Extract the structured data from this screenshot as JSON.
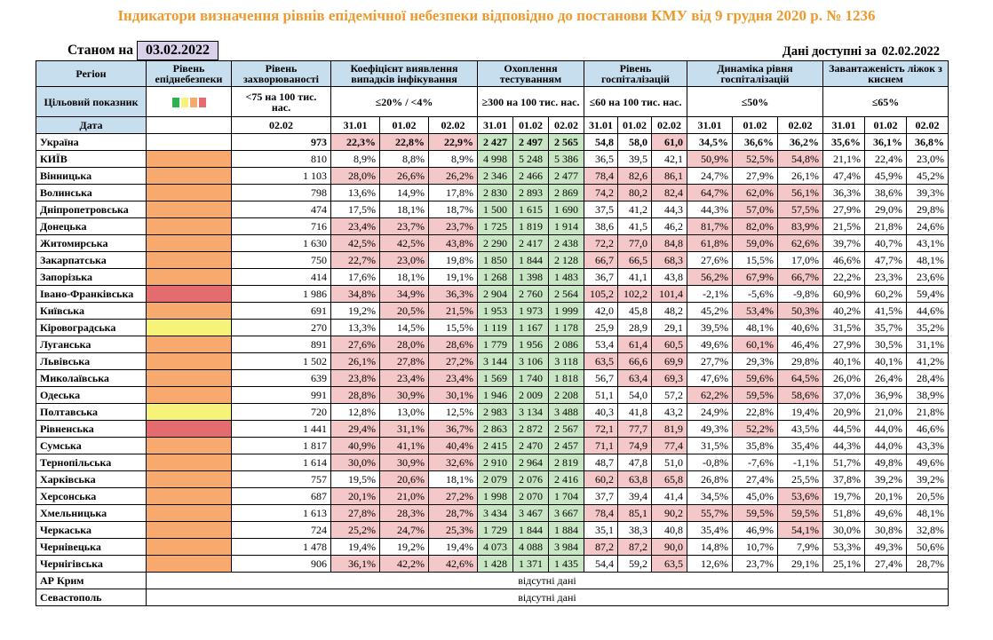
{
  "title": "Індикатори визначення рівнів епідемічної небезпеки відповідно до постанови КМУ від 9 грудня 2020 р. № 1236",
  "as_of_label": "Станом на",
  "as_of_date": "03.02.2022",
  "available_label": "Дані доступні за",
  "available_date": "02.02.2022",
  "colors": {
    "orange": "#F7A96E",
    "red": "#E46B6E",
    "yellow": "#F7F27A",
    "pink": "#F4C7C9",
    "green": "#C9E6C4",
    "header": "#C7DEEF"
  },
  "headers": {
    "region": "Регіон",
    "level": "Рівень епіднебезпеки",
    "incidence": "Рівень захворюваності",
    "detection": "Коефіцієнт виявлення випадків інфікування",
    "testing": "Охоплення тестуванням",
    "hosp": "Рівень госпіталізацій",
    "hosp_dyn": "Динаміка рівня госпіталізацій",
    "beds": "Завантаженість ліжок з киснем",
    "target": "Цільовий показник",
    "date": "Дата",
    "incidence_target": "<75 на 100 тис. нас.",
    "detection_target": "≤20% / <4%",
    "testing_target": "≥300 на 100 тис. нас.",
    "hosp_target": "≤60 на 100 тис. нас.",
    "hosp_dyn_target": "≤50%",
    "beds_target": "≤65%",
    "incidence_date": "02.02",
    "d1": "31.01",
    "d2": "01.02",
    "d3": "02.02",
    "target_dots": [
      "#2EB24F",
      "#F7F27A",
      "#F7A96E",
      "#E46B6E"
    ]
  },
  "rows": [
    {
      "name": "Україна",
      "level": "",
      "inc": "973",
      "det": [
        "22,3%",
        "22,8%",
        "22,9%"
      ],
      "detp": [
        1,
        1,
        1
      ],
      "test": [
        "2 427",
        "2 497",
        "2 565"
      ],
      "hosp": [
        "54,8",
        "58,0",
        "61,0"
      ],
      "hospp": [
        0,
        0,
        1
      ],
      "dyn": [
        "34,5%",
        "36,6%",
        "36,2%"
      ],
      "dynp": [
        0,
        0,
        0
      ],
      "beds": [
        "35,6%",
        "36,1%",
        "36,8%"
      ]
    },
    {
      "name": "КИЇВ",
      "level": "orange",
      "inc": "810",
      "det": [
        "8,9%",
        "8,8%",
        "8,9%"
      ],
      "detp": [
        0,
        0,
        0
      ],
      "test": [
        "4 998",
        "5 248",
        "5 386"
      ],
      "hosp": [
        "36,5",
        "39,5",
        "42,1"
      ],
      "hospp": [
        0,
        0,
        0
      ],
      "dyn": [
        "50,9%",
        "52,5%",
        "54,8%"
      ],
      "dynp": [
        1,
        1,
        1
      ],
      "beds": [
        "21,1%",
        "22,4%",
        "23,0%"
      ]
    },
    {
      "name": "Вінницька",
      "level": "orange",
      "inc": "1 103",
      "det": [
        "28,0%",
        "26,6%",
        "26,2%"
      ],
      "detp": [
        1,
        1,
        1
      ],
      "test": [
        "2 346",
        "2 466",
        "2 477"
      ],
      "hosp": [
        "78,4",
        "82,6",
        "86,1"
      ],
      "hospp": [
        1,
        1,
        1
      ],
      "dyn": [
        "24,7%",
        "27,9%",
        "26,1%"
      ],
      "dynp": [
        0,
        0,
        0
      ],
      "beds": [
        "47,4%",
        "45,9%",
        "45,2%"
      ]
    },
    {
      "name": "Волинська",
      "level": "orange",
      "inc": "798",
      "det": [
        "13,6%",
        "14,9%",
        "17,8%"
      ],
      "detp": [
        0,
        0,
        0
      ],
      "test": [
        "2 830",
        "2 893",
        "2 869"
      ],
      "hosp": [
        "74,2",
        "80,2",
        "82,4"
      ],
      "hospp": [
        1,
        1,
        1
      ],
      "dyn": [
        "64,7%",
        "62,0%",
        "56,1%"
      ],
      "dynp": [
        1,
        1,
        1
      ],
      "beds": [
        "36,3%",
        "38,6%",
        "39,3%"
      ]
    },
    {
      "name": "Дніпропетровська",
      "level": "orange",
      "inc": "474",
      "det": [
        "17,5%",
        "18,1%",
        "18,7%"
      ],
      "detp": [
        0,
        0,
        0
      ],
      "test": [
        "1 500",
        "1 615",
        "1 690"
      ],
      "hosp": [
        "37,5",
        "41,2",
        "44,3"
      ],
      "hospp": [
        0,
        0,
        0
      ],
      "dyn": [
        "44,3%",
        "57,0%",
        "57,5%"
      ],
      "dynp": [
        0,
        1,
        1
      ],
      "beds": [
        "27,9%",
        "29,0%",
        "29,8%"
      ]
    },
    {
      "name": "Донецька",
      "level": "orange",
      "inc": "716",
      "det": [
        "23,4%",
        "23,7%",
        "23,7%"
      ],
      "detp": [
        1,
        1,
        1
      ],
      "test": [
        "1 725",
        "1 819",
        "1 914"
      ],
      "hosp": [
        "38,6",
        "41,5",
        "46,2"
      ],
      "hospp": [
        0,
        0,
        0
      ],
      "dyn": [
        "81,7%",
        "82,0%",
        "83,9%"
      ],
      "dynp": [
        1,
        1,
        1
      ],
      "beds": [
        "21,5%",
        "21,8%",
        "24,6%"
      ]
    },
    {
      "name": "Житомирська",
      "level": "orange",
      "inc": "1 630",
      "det": [
        "42,5%",
        "42,5%",
        "43,8%"
      ],
      "detp": [
        1,
        1,
        1
      ],
      "test": [
        "2 290",
        "2 417",
        "2 438"
      ],
      "hosp": [
        "72,2",
        "77,0",
        "84,8"
      ],
      "hospp": [
        1,
        1,
        1
      ],
      "dyn": [
        "61,8%",
        "59,0%",
        "62,6%"
      ],
      "dynp": [
        1,
        1,
        1
      ],
      "beds": [
        "39,7%",
        "40,7%",
        "43,1%"
      ]
    },
    {
      "name": "Закарпатська",
      "level": "orange",
      "inc": "750",
      "det": [
        "22,7%",
        "23,0%",
        "19,8%"
      ],
      "detp": [
        1,
        1,
        0
      ],
      "test": [
        "1 850",
        "1 844",
        "2 128"
      ],
      "hosp": [
        "66,7",
        "66,5",
        "68,3"
      ],
      "hospp": [
        1,
        1,
        1
      ],
      "dyn": [
        "27,6%",
        "15,5%",
        "17,0%"
      ],
      "dynp": [
        0,
        0,
        0
      ],
      "beds": [
        "46,6%",
        "47,7%",
        "48,1%"
      ]
    },
    {
      "name": "Запорізька",
      "level": "orange",
      "inc": "414",
      "det": [
        "17,6%",
        "18,1%",
        "19,1%"
      ],
      "detp": [
        0,
        0,
        0
      ],
      "test": [
        "1 268",
        "1 398",
        "1 483"
      ],
      "hosp": [
        "36,7",
        "41,1",
        "43,8"
      ],
      "hospp": [
        0,
        0,
        0
      ],
      "dyn": [
        "56,2%",
        "67,9%",
        "66,7%"
      ],
      "dynp": [
        1,
        1,
        1
      ],
      "beds": [
        "22,2%",
        "23,3%",
        "23,6%"
      ]
    },
    {
      "name": "Івано-Франківська",
      "level": "red",
      "inc": "1 986",
      "det": [
        "34,8%",
        "34,9%",
        "36,3%"
      ],
      "detp": [
        1,
        1,
        1
      ],
      "test": [
        "2 904",
        "2 760",
        "2 564"
      ],
      "hosp": [
        "105,2",
        "102,2",
        "101,4"
      ],
      "hospp": [
        1,
        1,
        1
      ],
      "dyn": [
        "-2,1%",
        "-5,6%",
        "-9,8%"
      ],
      "dynp": [
        0,
        0,
        0
      ],
      "beds": [
        "60,9%",
        "60,2%",
        "59,4%"
      ]
    },
    {
      "name": "Київська",
      "level": "orange",
      "inc": "691",
      "det": [
        "19,2%",
        "20,5%",
        "21,5%"
      ],
      "detp": [
        0,
        1,
        1
      ],
      "test": [
        "1 953",
        "1 973",
        "1 999"
      ],
      "hosp": [
        "42,0",
        "45,8",
        "48,2"
      ],
      "hospp": [
        0,
        0,
        0
      ],
      "dyn": [
        "45,2%",
        "53,4%",
        "50,3%"
      ],
      "dynp": [
        0,
        1,
        1
      ],
      "beds": [
        "40,2%",
        "41,5%",
        "44,6%"
      ]
    },
    {
      "name": "Кіровоградська",
      "level": "yellow",
      "inc": "270",
      "det": [
        "13,3%",
        "14,5%",
        "15,5%"
      ],
      "detp": [
        0,
        0,
        0
      ],
      "test": [
        "1 119",
        "1 167",
        "1 178"
      ],
      "hosp": [
        "25,9",
        "28,9",
        "29,1"
      ],
      "hospp": [
        0,
        0,
        0
      ],
      "dyn": [
        "39,5%",
        "48,1%",
        "40,6%"
      ],
      "dynp": [
        0,
        0,
        0
      ],
      "beds": [
        "31,5%",
        "35,7%",
        "35,2%"
      ]
    },
    {
      "name": "Луганська",
      "level": "orange",
      "inc": "891",
      "det": [
        "27,6%",
        "28,0%",
        "28,6%"
      ],
      "detp": [
        1,
        1,
        1
      ],
      "test": [
        "1 779",
        "1 956",
        "2 086"
      ],
      "hosp": [
        "53,4",
        "61,4",
        "60,5"
      ],
      "hospp": [
        0,
        1,
        1
      ],
      "dyn": [
        "49,6%",
        "60,1%",
        "46,4%"
      ],
      "dynp": [
        0,
        1,
        0
      ],
      "beds": [
        "27,9%",
        "30,5%",
        "31,1%"
      ]
    },
    {
      "name": "Львівська",
      "level": "orange",
      "inc": "1 502",
      "det": [
        "26,1%",
        "27,8%",
        "27,2%"
      ],
      "detp": [
        1,
        1,
        1
      ],
      "test": [
        "3 144",
        "3 106",
        "3 118"
      ],
      "hosp": [
        "63,5",
        "66,6",
        "69,9"
      ],
      "hospp": [
        1,
        1,
        1
      ],
      "dyn": [
        "27,7%",
        "29,3%",
        "29,8%"
      ],
      "dynp": [
        0,
        0,
        0
      ],
      "beds": [
        "40,1%",
        "40,1%",
        "41,2%"
      ]
    },
    {
      "name": "Миколаївська",
      "level": "orange",
      "inc": "639",
      "det": [
        "23,8%",
        "23,4%",
        "23,4%"
      ],
      "detp": [
        1,
        1,
        1
      ],
      "test": [
        "1 569",
        "1 740",
        "1 818"
      ],
      "hosp": [
        "56,7",
        "63,4",
        "69,3"
      ],
      "hospp": [
        0,
        1,
        1
      ],
      "dyn": [
        "47,6%",
        "59,6%",
        "64,5%"
      ],
      "dynp": [
        0,
        1,
        1
      ],
      "beds": [
        "26,0%",
        "26,4%",
        "28,4%"
      ]
    },
    {
      "name": "Одеська",
      "level": "orange",
      "inc": "991",
      "det": [
        "28,8%",
        "30,9%",
        "30,1%"
      ],
      "detp": [
        1,
        1,
        1
      ],
      "test": [
        "1 946",
        "2 009",
        "2 208"
      ],
      "hosp": [
        "51,1",
        "54,0",
        "57,2"
      ],
      "hospp": [
        0,
        0,
        0
      ],
      "dyn": [
        "62,2%",
        "59,5%",
        "58,6%"
      ],
      "dynp": [
        1,
        1,
        1
      ],
      "beds": [
        "37,0%",
        "36,9%",
        "38,9%"
      ]
    },
    {
      "name": "Полтавська",
      "level": "yellow",
      "inc": "720",
      "det": [
        "12,8%",
        "13,0%",
        "12,5%"
      ],
      "detp": [
        0,
        0,
        0
      ],
      "test": [
        "2 983",
        "3 134",
        "3 488"
      ],
      "hosp": [
        "40,3",
        "41,8",
        "43,2"
      ],
      "hospp": [
        0,
        0,
        0
      ],
      "dyn": [
        "24,9%",
        "22,8%",
        "19,4%"
      ],
      "dynp": [
        0,
        0,
        0
      ],
      "beds": [
        "20,9%",
        "21,0%",
        "21,8%"
      ]
    },
    {
      "name": "Рівненська",
      "level": "red",
      "inc": "1 441",
      "det": [
        "29,4%",
        "31,1%",
        "36,7%"
      ],
      "detp": [
        1,
        1,
        1
      ],
      "test": [
        "2 863",
        "2 872",
        "2 567"
      ],
      "hosp": [
        "72,1",
        "77,7",
        "81,9"
      ],
      "hospp": [
        1,
        1,
        1
      ],
      "dyn": [
        "49,3%",
        "52,2%",
        "43,5%"
      ],
      "dynp": [
        0,
        1,
        0
      ],
      "beds": [
        "44,5%",
        "44,0%",
        "46,6%"
      ]
    },
    {
      "name": "Сумська",
      "level": "orange",
      "inc": "1 817",
      "det": [
        "40,9%",
        "41,1%",
        "40,4%"
      ],
      "detp": [
        1,
        1,
        1
      ],
      "test": [
        "2 415",
        "2 470",
        "2 457"
      ],
      "hosp": [
        "71,1",
        "74,9",
        "77,4"
      ],
      "hospp": [
        1,
        1,
        1
      ],
      "dyn": [
        "31,5%",
        "35,8%",
        "35,4%"
      ],
      "dynp": [
        0,
        0,
        0
      ],
      "beds": [
        "44,3%",
        "44,0%",
        "43,3%"
      ]
    },
    {
      "name": "Тернопільська",
      "level": "orange",
      "inc": "1 614",
      "det": [
        "30,0%",
        "30,9%",
        "32,6%"
      ],
      "detp": [
        1,
        1,
        1
      ],
      "test": [
        "2 910",
        "2 964",
        "2 819"
      ],
      "hosp": [
        "48,7",
        "47,8",
        "51,0"
      ],
      "hospp": [
        0,
        0,
        0
      ],
      "dyn": [
        "-0,8%",
        "-7,6%",
        "-1,1%"
      ],
      "dynp": [
        0,
        0,
        0
      ],
      "beds": [
        "51,7%",
        "49,8%",
        "49,6%"
      ]
    },
    {
      "name": "Харківська",
      "level": "orange",
      "inc": "757",
      "det": [
        "19,5%",
        "20,6%",
        "18,1%"
      ],
      "detp": [
        0,
        1,
        0
      ],
      "test": [
        "2 079",
        "2 076",
        "2 416"
      ],
      "hosp": [
        "60,2",
        "63,8",
        "65,8"
      ],
      "hospp": [
        1,
        1,
        1
      ],
      "dyn": [
        "26,8%",
        "27,4%",
        "25,5%"
      ],
      "dynp": [
        0,
        0,
        0
      ],
      "beds": [
        "37,8%",
        "39,2%",
        "39,2%"
      ]
    },
    {
      "name": "Херсонська",
      "level": "orange",
      "inc": "687",
      "det": [
        "20,1%",
        "21,0%",
        "27,2%"
      ],
      "detp": [
        1,
        1,
        1
      ],
      "test": [
        "1 998",
        "2 070",
        "1 704"
      ],
      "hosp": [
        "37,7",
        "39,4",
        "41,4"
      ],
      "hospp": [
        0,
        0,
        0
      ],
      "dyn": [
        "34,5%",
        "45,0%",
        "53,6%"
      ],
      "dynp": [
        0,
        0,
        1
      ],
      "beds": [
        "19,7%",
        "20,1%",
        "20,5%"
      ]
    },
    {
      "name": "Хмельницька",
      "level": "orange",
      "inc": "1 613",
      "det": [
        "27,8%",
        "28,3%",
        "28,7%"
      ],
      "detp": [
        1,
        1,
        1
      ],
      "test": [
        "3 434",
        "3 467",
        "3 667"
      ],
      "hosp": [
        "78,4",
        "85,1",
        "90,2"
      ],
      "hospp": [
        1,
        1,
        1
      ],
      "dyn": [
        "55,7%",
        "59,5%",
        "59,5%"
      ],
      "dynp": [
        1,
        1,
        1
      ],
      "beds": [
        "51,8%",
        "49,6%",
        "48,1%"
      ]
    },
    {
      "name": "Черкаська",
      "level": "orange",
      "inc": "724",
      "det": [
        "25,2%",
        "24,7%",
        "25,3%"
      ],
      "detp": [
        1,
        1,
        1
      ],
      "test": [
        "1 729",
        "1 844",
        "1 884"
      ],
      "hosp": [
        "35,1",
        "38,3",
        "40,8"
      ],
      "hospp": [
        0,
        0,
        0
      ],
      "dyn": [
        "35,4%",
        "46,9%",
        "54,1%"
      ],
      "dynp": [
        0,
        0,
        1
      ],
      "beds": [
        "30,0%",
        "30,8%",
        "32,8%"
      ]
    },
    {
      "name": "Чернівецька",
      "level": "orange",
      "inc": "1 478",
      "det": [
        "19,4%",
        "19,2%",
        "19,4%"
      ],
      "detp": [
        0,
        0,
        0
      ],
      "test": [
        "4 073",
        "4 088",
        "3 984"
      ],
      "hosp": [
        "87,2",
        "87,2",
        "90,0"
      ],
      "hospp": [
        1,
        1,
        1
      ],
      "dyn": [
        "14,8%",
        "10,7%",
        "7,9%"
      ],
      "dynp": [
        0,
        0,
        0
      ],
      "beds": [
        "53,3%",
        "49,3%",
        "50,6%"
      ]
    },
    {
      "name": "Чернігівська",
      "level": "orange",
      "inc": "906",
      "det": [
        "36,1%",
        "42,2%",
        "42,6%"
      ],
      "detp": [
        1,
        1,
        1
      ],
      "test": [
        "1 428",
        "1 371",
        "1 435"
      ],
      "hosp": [
        "54,4",
        "59,2",
        "63,5"
      ],
      "hospp": [
        0,
        0,
        1
      ],
      "dyn": [
        "12,6%",
        "23,7%",
        "29,1%"
      ],
      "dynp": [
        0,
        0,
        0
      ],
      "beds": [
        "25,1%",
        "27,4%",
        "28,7%"
      ]
    }
  ],
  "missing_rows": [
    {
      "name": "АР Крим",
      "text": "відсутні дані"
    },
    {
      "name": "Севастополь",
      "text": "відсутні дані"
    }
  ]
}
